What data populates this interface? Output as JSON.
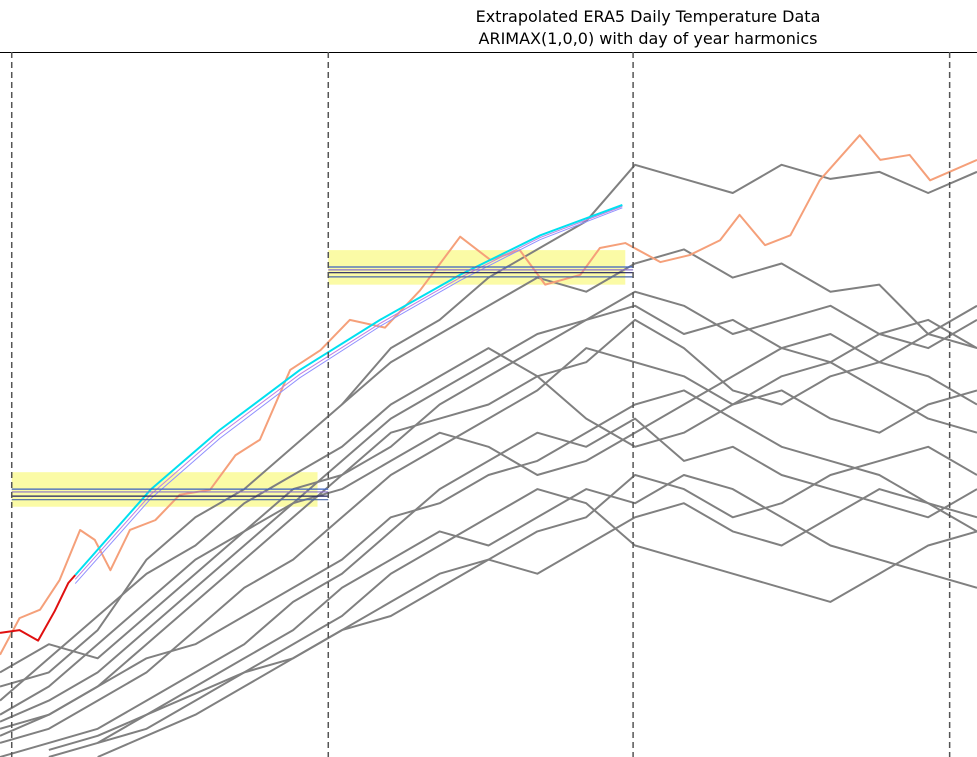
{
  "chart_data": {
    "type": "line",
    "title": "Extrapolated ERA5 Daily Temperature Data",
    "subtitle": "ARIMAX(1,0,0) with day of year harmonics",
    "xlim": [
      0,
      100
    ],
    "ylim": [
      0,
      100
    ],
    "vlines": [
      1.2,
      33.6,
      64.8,
      97.2
    ],
    "bands": [
      {
        "x": [
          1.2,
          32.5
        ],
        "y": [
          35.5,
          40.4
        ],
        "color": "#fbfb9c"
      },
      {
        "x": [
          33.6,
          64.0
        ],
        "y": [
          67.0,
          71.9
        ],
        "color": "#fbfb9c"
      }
    ],
    "hlines": [
      {
        "value": 38.0,
        "x": [
          1.2,
          33.6
        ],
        "color": "#3a60c0"
      },
      {
        "value": 37.6,
        "x": [
          1.2,
          33.6
        ],
        "color": "#8a70c8"
      },
      {
        "value": 37.0,
        "x": [
          1.2,
          33.6
        ],
        "color": "#202060"
      },
      {
        "value": 36.5,
        "x": [
          1.2,
          33.6
        ],
        "color": "#4a68a8"
      },
      {
        "value": 69.5,
        "x": [
          33.6,
          64.8
        ],
        "color": "#3a60c0"
      },
      {
        "value": 69.1,
        "x": [
          33.6,
          64.8
        ],
        "color": "#8a70c8"
      },
      {
        "value": 68.7,
        "x": [
          33.6,
          64.8
        ],
        "color": "#202060"
      },
      {
        "value": 68.1,
        "x": [
          33.6,
          64.8
        ],
        "color": "#4a68a8"
      }
    ],
    "x": [
      0,
      5,
      10,
      15,
      20,
      25,
      30,
      35,
      40,
      45,
      50,
      55,
      60,
      65,
      70,
      75,
      80,
      85,
      90,
      95,
      100
    ],
    "series": [
      {
        "color": "#808080",
        "values": [
          null,
          null,
          null,
          null,
          null,
          null,
          null,
          50,
          58,
          62,
          68,
          72,
          76,
          84,
          82,
          80,
          84,
          82,
          83,
          80,
          83
        ]
      },
      {
        "color": "#808080",
        "values": [
          10,
          12,
          18,
          28,
          34,
          38,
          44,
          50,
          56,
          60,
          64,
          68,
          66,
          70,
          72,
          68,
          70,
          66,
          67,
          60,
          58
        ]
      },
      {
        "color": "#808080",
        "values": [
          5,
          8,
          12,
          18,
          24,
          30,
          36,
          42,
          48,
          52,
          56,
          60,
          62,
          64,
          60,
          62,
          58,
          56,
          60,
          62,
          58
        ]
      },
      {
        "color": "#808080",
        "values": [
          2,
          4,
          8,
          12,
          18,
          24,
          28,
          34,
          40,
          44,
          48,
          52,
          58,
          56,
          54,
          50,
          52,
          48,
          46,
          50,
          52
        ]
      },
      {
        "color": "#808080",
        "values": [
          0,
          2,
          4,
          8,
          12,
          16,
          22,
          26,
          32,
          38,
          42,
          46,
          44,
          48,
          42,
          44,
          40,
          38,
          36,
          34,
          38
        ]
      },
      {
        "color": "#808080",
        "values": [
          null,
          0,
          2,
          4,
          8,
          12,
          16,
          20,
          26,
          30,
          34,
          38,
          36,
          30,
          28,
          26,
          24,
          22,
          26,
          30,
          32
        ]
      },
      {
        "color": "#808080",
        "values": [
          8,
          14,
          20,
          26,
          30,
          36,
          40,
          44,
          50,
          54,
          58,
          54,
          56,
          62,
          58,
          52,
          50,
          54,
          56,
          60,
          64
        ]
      },
      {
        "color": "#808080",
        "values": [
          null,
          null,
          2,
          6,
          10,
          14,
          18,
          24,
          28,
          32,
          30,
          34,
          38,
          36,
          40,
          38,
          34,
          30,
          28,
          26,
          24
        ]
      },
      {
        "color": "#808080",
        "values": [
          3,
          6,
          10,
          14,
          16,
          20,
          24,
          28,
          34,
          36,
          40,
          42,
          46,
          50,
          52,
          48,
          44,
          42,
          40,
          36,
          32
        ]
      },
      {
        "color": "#808080",
        "values": [
          12,
          16,
          14,
          20,
          26,
          32,
          38,
          40,
          46,
          48,
          50,
          54,
          48,
          44,
          46,
          50,
          54,
          56,
          52,
          48,
          46
        ]
      },
      {
        "color": "#808080",
        "values": [
          null,
          1,
          3,
          6,
          9,
          12,
          14,
          18,
          22,
          26,
          28,
          32,
          34,
          40,
          38,
          34,
          36,
          40,
          42,
          44,
          40
        ]
      },
      {
        "color": "#808080",
        "values": [
          6,
          10,
          16,
          22,
          28,
          32,
          36,
          38,
          42,
          46,
          44,
          40,
          42,
          46,
          50,
          54,
          58,
          60,
          56,
          54,
          50
        ]
      },
      {
        "color": "#808080",
        "values": [
          null,
          null,
          0,
          3,
          6,
          10,
          14,
          18,
          20,
          24,
          28,
          26,
          30,
          34,
          36,
          32,
          30,
          34,
          38,
          36,
          34
        ]
      },
      {
        "color": "#808080",
        "values": [
          4,
          6,
          10,
          16,
          22,
          28,
          34,
          40,
          44,
          50,
          54,
          58,
          62,
          66,
          64,
          60,
          62,
          64,
          60,
          58,
          62
        ]
      },
      {
        "color": "#f5a07a",
        "x": [
          0,
          2.0,
          4.1,
          6.1,
          8.2,
          9.7,
          11.3,
          13.3,
          15.9,
          18.4,
          21.5,
          24.1,
          26.6,
          29.7,
          32.8,
          35.8,
          39.4,
          43.0,
          47.1,
          50.2,
          53.2,
          55.8,
          59.4,
          61.4,
          64.0,
          67.6,
          70.6,
          73.7,
          75.7,
          78.3,
          80.9,
          83.9,
          88.0,
          90.1,
          93.1,
          95.2,
          100
        ],
        "values": [
          14.5,
          19.7,
          20.9,
          25.1,
          32.2,
          30.8,
          26.5,
          32.2,
          33.6,
          37.2,
          37.9,
          42.8,
          45.0,
          54.9,
          57.7,
          62.0,
          60.9,
          66.2,
          73.8,
          70.5,
          71.9,
          67.0,
          68.4,
          72.2,
          72.9,
          70.2,
          71.2,
          73.3,
          76.9,
          72.6,
          74.0,
          81.8,
          88.2,
          84.7,
          85.4,
          81.8,
          84.7
        ]
      },
      {
        "color": "#9090ff",
        "x": [
          7.7,
          15.4,
          22.5,
          30.7,
          38.9,
          47.1,
          55.3,
          63.7
        ],
        "values": [
          24.6,
          36.6,
          45.2,
          53.8,
          61.1,
          67.6,
          73.4,
          77.9
        ]
      },
      {
        "color": "#c080e0",
        "x": [
          7.7,
          15.4,
          22.5,
          30.7,
          38.9,
          47.1,
          55.3,
          63.7
        ],
        "values": [
          25.2,
          37.2,
          45.8,
          54.3,
          61.5,
          68.0,
          73.7,
          78.1
        ]
      },
      {
        "color": "#00e0f0",
        "x": [
          7.7,
          15.4,
          22.5,
          30.7,
          38.9,
          47.1,
          55.3,
          63.7
        ],
        "values": [
          25.8,
          37.9,
          46.4,
          54.9,
          62.0,
          68.4,
          74.0,
          78.3
        ]
      },
      {
        "color": "#e01010",
        "x": [
          0,
          2.0,
          3.9,
          5.6,
          7.0,
          7.7
        ],
        "values": [
          17.6,
          18.0,
          16.5,
          20.7,
          24.7,
          25.8
        ]
      }
    ]
  }
}
